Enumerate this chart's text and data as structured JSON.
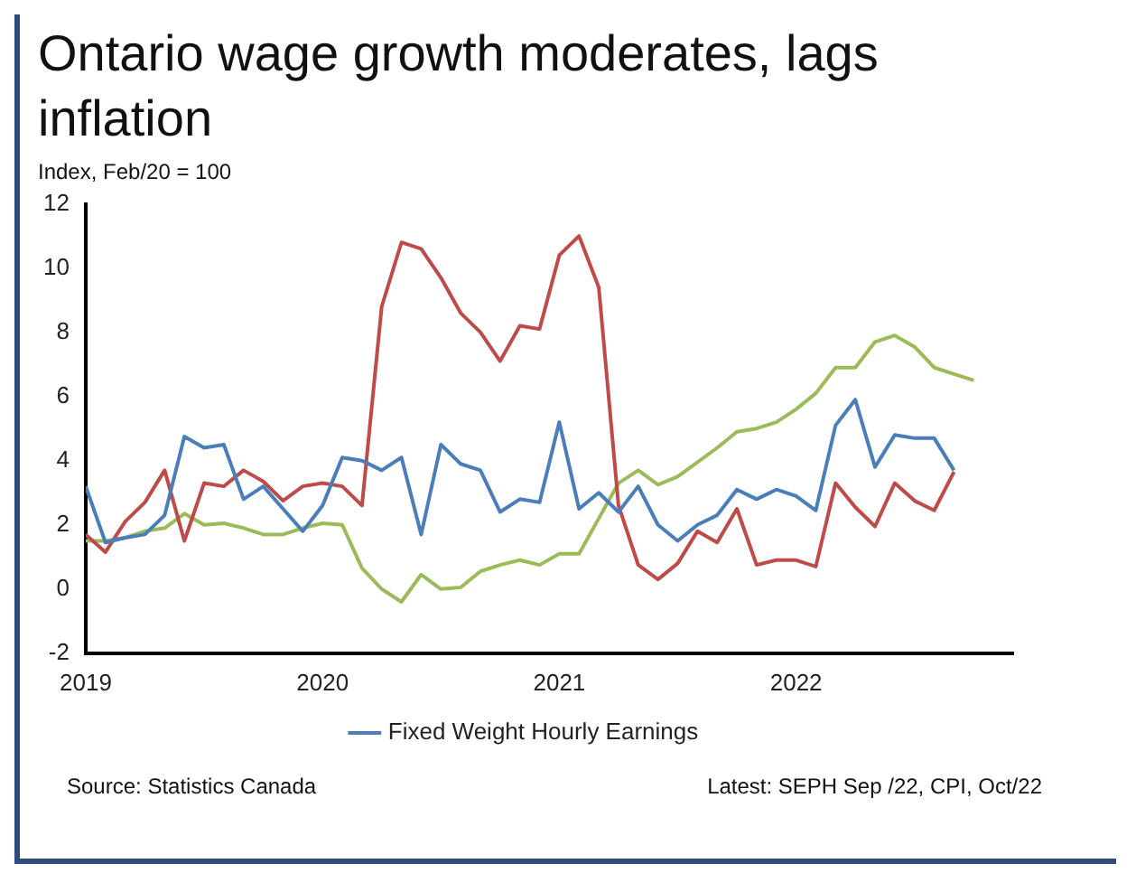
{
  "chart_data": {
    "type": "line",
    "title": "Ontario wage growth moderates, lags inflation",
    "ylabel": "Index, Feb/20 = 100",
    "x": [
      "2019-01",
      "2019-02",
      "2019-03",
      "2019-04",
      "2019-05",
      "2019-06",
      "2019-07",
      "2019-08",
      "2019-09",
      "2019-10",
      "2019-11",
      "2019-12",
      "2020-01",
      "2020-02",
      "2020-03",
      "2020-04",
      "2020-05",
      "2020-06",
      "2020-07",
      "2020-08",
      "2020-09",
      "2020-10",
      "2020-11",
      "2020-12",
      "2021-01",
      "2021-02",
      "2021-03",
      "2021-04",
      "2021-05",
      "2021-06",
      "2021-07",
      "2021-08",
      "2021-09",
      "2021-10",
      "2021-11",
      "2021-12",
      "2022-01",
      "2022-02",
      "2022-03",
      "2022-04",
      "2022-05",
      "2022-06",
      "2022-07",
      "2022-08",
      "2022-09",
      "2022-10"
    ],
    "series": [
      {
        "name": "Fixed Weight Hourly Earnings",
        "color": "#4a7ebb",
        "values": [
          3.2,
          1.45,
          1.6,
          1.7,
          2.3,
          4.75,
          4.4,
          4.5,
          2.8,
          3.2,
          2.5,
          1.8,
          2.6,
          4.1,
          4.0,
          3.7,
          4.1,
          1.7,
          4.5,
          3.9,
          3.7,
          2.4,
          2.8,
          2.7,
          5.2,
          2.5,
          3.0,
          2.4,
          3.2,
          2.0,
          1.5,
          2.0,
          2.3,
          3.1,
          2.8,
          3.1,
          2.9,
          2.45,
          5.1,
          5.9,
          3.8,
          4.8,
          4.7,
          4.7,
          3.7,
          null
        ]
      },
      {
        "color": "#be4b48",
        "values": [
          1.7,
          1.15,
          2.1,
          2.7,
          3.7,
          1.5,
          3.3,
          3.2,
          3.7,
          3.35,
          2.75,
          3.2,
          3.3,
          3.2,
          2.6,
          8.8,
          10.8,
          10.6,
          9.7,
          8.6,
          8.0,
          7.1,
          8.2,
          8.1,
          10.4,
          11.0,
          9.4,
          2.6,
          0.75,
          0.3,
          0.8,
          1.8,
          1.45,
          2.5,
          0.75,
          0.9,
          0.9,
          0.7,
          3.3,
          2.55,
          1.95,
          3.3,
          2.75,
          2.45,
          3.65,
          null
        ]
      },
      {
        "color": "#9bbb59",
        "values": [
          1.5,
          1.5,
          1.6,
          1.8,
          1.9,
          2.35,
          2.0,
          2.05,
          1.9,
          1.7,
          1.7,
          1.9,
          2.05,
          2.0,
          0.65,
          0.0,
          -0.4,
          0.45,
          0.0,
          0.05,
          0.55,
          0.75,
          0.9,
          0.75,
          1.1,
          1.1,
          2.2,
          3.3,
          3.7,
          3.25,
          3.5,
          3.95,
          4.4,
          4.9,
          5.0,
          5.2,
          5.6,
          6.1,
          6.9,
          6.9,
          7.7,
          7.9,
          7.55,
          6.9,
          6.7,
          6.5
        ]
      }
    ],
    "xlim": [
      "2019-01",
      "2022-12"
    ],
    "xticks": [
      "2019",
      "2020",
      "2021",
      "2022"
    ],
    "ylim": [
      -2,
      12
    ],
    "yticks": [
      -2,
      0,
      2,
      4,
      6,
      8,
      10,
      12
    ],
    "grid": false,
    "legend": "bottom",
    "marker": "none",
    "line_style": "solid",
    "annotations": [
      "Source: Statistics Canada",
      "Latest: SEPH Sep /22, CPI, Oct/22"
    ]
  }
}
